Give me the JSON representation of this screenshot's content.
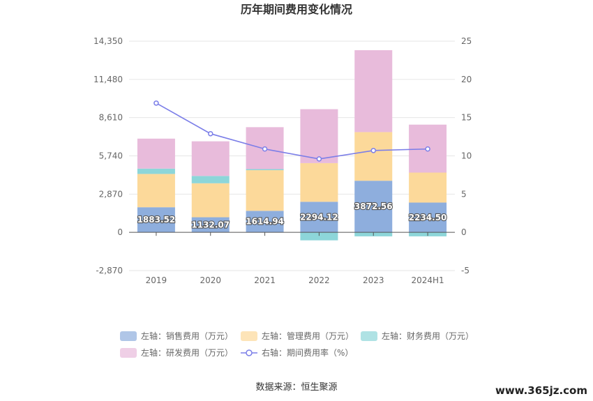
{
  "chart_data": {
    "type": "bar",
    "title": "历年期间费用变化情况",
    "categories": [
      "2019",
      "2020",
      "2021",
      "2022",
      "2023",
      "2024H1"
    ],
    "series": [
      {
        "name": "左轴：销售费用（万元）",
        "type": "bar",
        "axis": "left",
        "color": "#8eaedd",
        "values": [
          1883.52,
          1132.07,
          1614.94,
          2294.12,
          3872.56,
          2234.5
        ],
        "labels": [
          "1883.52",
          "1132.07",
          "1614.94",
          "2294.12",
          "3872.56",
          "2234.50"
        ]
      },
      {
        "name": "左轴：管理费用（万元）",
        "type": "bar",
        "axis": "left",
        "color": "#fcd99a",
        "values": [
          2500,
          2550,
          3050,
          2900,
          3650,
          2250
        ]
      },
      {
        "name": "左轴：财务费用（万元）",
        "type": "bar",
        "axis": "left",
        "color": "#8dd6d9",
        "values": [
          400,
          550,
          80,
          -600,
          -300,
          -300
        ]
      },
      {
        "name": "左轴：研发费用（万元）",
        "type": "bar",
        "axis": "left",
        "color": "#e8bbdb",
        "values": [
          2250,
          2600,
          3150,
          4050,
          6150,
          3600
        ]
      },
      {
        "name": "右轴：期间费用率（%）",
        "type": "line",
        "axis": "right",
        "color": "#7b7ee8",
        "values": [
          16.9,
          12.9,
          10.9,
          9.6,
          10.7,
          10.9
        ]
      }
    ],
    "left_axis": {
      "min": -2870,
      "max": 14350,
      "ticks": [
        -2870,
        0,
        2870,
        5740,
        8610,
        11480,
        14350
      ],
      "tick_labels": [
        "-2,870",
        "0",
        "2,870",
        "5,740",
        "8,610",
        "11,480",
        "14,350"
      ]
    },
    "right_axis": {
      "min": -5,
      "max": 25,
      "ticks": [
        -5,
        0,
        5,
        10,
        15,
        20,
        25
      ],
      "tick_labels": [
        "-5",
        "0",
        "5",
        "10",
        "15",
        "20",
        "25"
      ]
    },
    "grid": true,
    "legend_position": "bottom"
  },
  "source": "数据来源：恒生聚源",
  "watermark": "www.365jz.com"
}
